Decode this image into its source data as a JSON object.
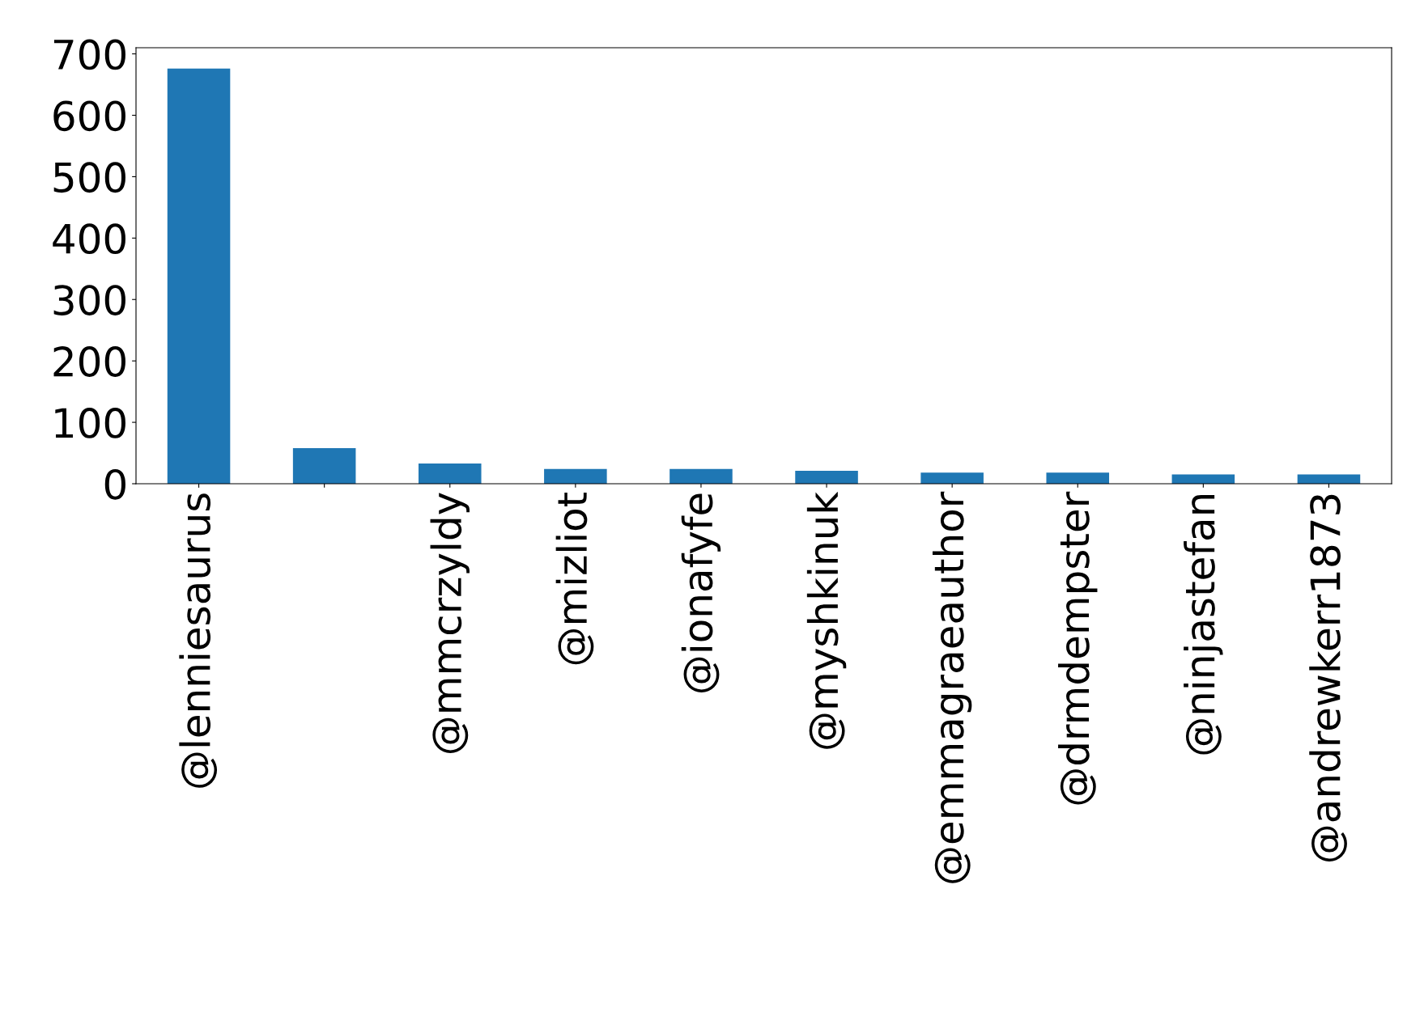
{
  "chart_data": {
    "type": "bar",
    "categories": [
      "@lenniesaurus",
      null,
      "@mmcrzyldy",
      "@mizliot",
      "@ionafyfe",
      "@myshkinuk",
      "@emmagraeauthor",
      "@drmdempster",
      "@ninjastefan",
      "@andrewkerr1873"
    ],
    "values": [
      676,
      58,
      33,
      24,
      24,
      21,
      18,
      18,
      15,
      15
    ],
    "color": "#1f77b4",
    "ylim": [
      0,
      710
    ],
    "yticks": [
      0,
      100,
      200,
      300,
      400,
      500,
      600,
      700
    ],
    "grid": false,
    "legend": false
  }
}
